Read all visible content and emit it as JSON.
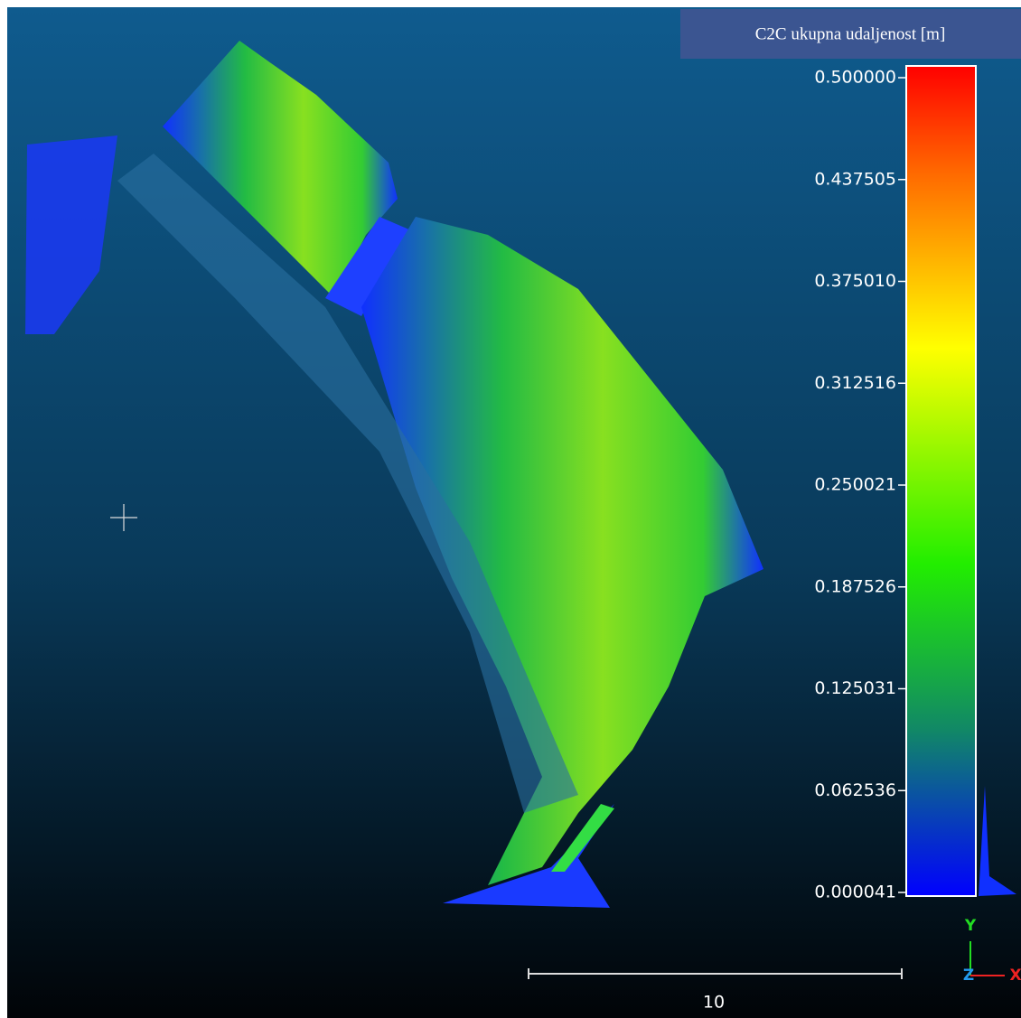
{
  "color_scale": {
    "title": "C2C ukupna udaljenost [m]",
    "labels": [
      "0.500000",
      "0.437505",
      "0.375010",
      "0.312516",
      "0.250021",
      "0.187526",
      "0.125031",
      "0.062536",
      "0.000041"
    ]
  },
  "scale_bar": {
    "label": "10"
  },
  "axes": {
    "y": "Y",
    "z": "Z",
    "x": "X"
  }
}
